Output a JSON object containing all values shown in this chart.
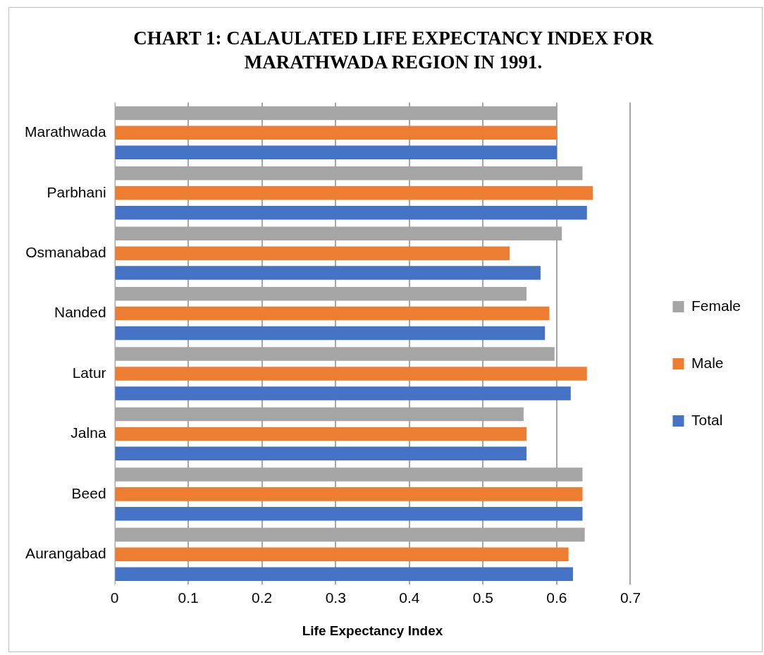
{
  "chart_data": {
    "type": "bar",
    "orientation": "horizontal",
    "title": "CHART 1: CALAULATED LIFE EXPECTANCY INDEX FOR MARATHWADA REGION IN 1991.",
    "xlabel": "Life Expectancy Index",
    "categories": [
      "Marathwada",
      "Parbhani",
      "Osmanabad",
      "Nanded",
      "Latur",
      "Jalna",
      "Beed",
      "Aurangabad"
    ],
    "series": [
      {
        "name": "Female",
        "color": "#a5a5a5",
        "values": [
          0.6,
          0.635,
          0.607,
          0.559,
          0.597,
          0.555,
          0.635,
          0.638
        ]
      },
      {
        "name": "Male",
        "color": "#ed7d31",
        "values": [
          0.6,
          0.649,
          0.536,
          0.59,
          0.641,
          0.559,
          0.635,
          0.616
        ]
      },
      {
        "name": "Total",
        "color": "#4472c4",
        "values": [
          0.6,
          0.641,
          0.578,
          0.584,
          0.619,
          0.559,
          0.635,
          0.622
        ]
      }
    ],
    "xlim": [
      0,
      0.7
    ],
    "xticks": [
      0,
      0.1,
      0.2,
      0.3,
      0.4,
      0.5,
      0.6,
      0.7
    ],
    "grid": "x",
    "legend": "right"
  }
}
